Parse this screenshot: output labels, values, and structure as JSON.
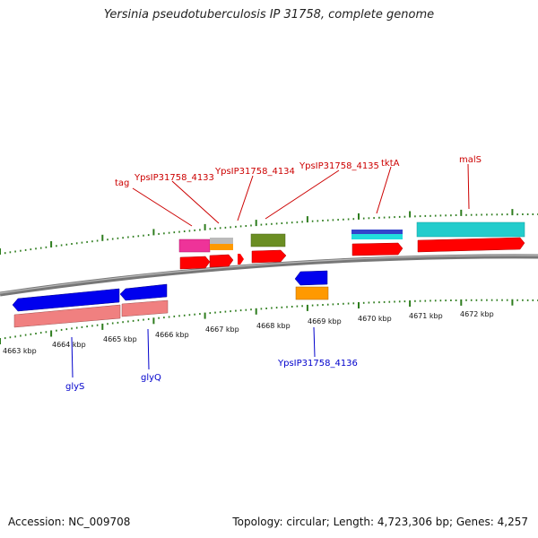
{
  "header": {
    "title": "Yersinia pseudotuberculosis IP 31758, complete genome"
  },
  "footer": {
    "accession": "Accession: NC_009708",
    "summary": "Topology: circular; Length: 4,723,306 bp; Genes: 4,257"
  },
  "axis": {
    "tick_labels": [
      "4663 kbp",
      "4664 kbp",
      "4665 kbp",
      "4666 kbp",
      "4667 kbp",
      "4668 kbp",
      "4669 kbp",
      "4670 kbp",
      "4671 kbp",
      "4672 kbp"
    ]
  },
  "gene_labels_top": [
    "tag",
    "YpsIP31758_4133",
    "YpsIP31758_4134",
    "YpsIP31758_4135",
    "tktA",
    "malS"
  ],
  "gene_labels_bottom": [
    "glyS",
    "glyQ",
    "YpsIP31758_4136"
  ],
  "colors": {
    "backbone": "#7a7a7a",
    "tick": "#2e7d1e",
    "gene": "#ff0000",
    "blue_feature": "#0000ee",
    "salmon_feature": "#f08080",
    "cyan_feature": "#22cccc",
    "olive_feature": "#6b8e23",
    "orange_feature": "#ff9900",
    "magenta_feature": "#ee2288"
  }
}
